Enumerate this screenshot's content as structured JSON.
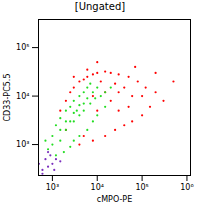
{
  "chart_data": {
    "type": "scatter",
    "title": "[Ungated]",
    "x_label": "cMPO-PE",
    "y_label": "CD33-PC5.5",
    "log": true,
    "grid": false,
    "marker": "dot",
    "xlim": [
      490,
      1200000
    ],
    "ylim": [
      230,
      380000
    ],
    "xticks": [
      {
        "value": 1000,
        "label": "10³"
      },
      {
        "value": 10000,
        "label": "10⁴"
      },
      {
        "value": 100000,
        "label": "10⁵"
      },
      {
        "value": 1000000,
        "label": "10⁶"
      }
    ],
    "yticks": [
      {
        "value": 1000,
        "label": "10³"
      },
      {
        "value": 10000,
        "label": "10⁴"
      },
      {
        "value": 100000,
        "label": "10⁵"
      }
    ],
    "series": [
      {
        "color": "#ff0000",
        "x": [
          1500,
          2000,
          2500,
          3000,
          4000,
          5000,
          6000,
          8000,
          10000,
          15000,
          20000,
          30000,
          50000,
          80000,
          120000,
          200000,
          300000,
          150000,
          100000,
          60000,
          40000,
          25000,
          15000,
          8000,
          5000,
          10000,
          20000,
          30000,
          40000,
          60000,
          15000,
          12000,
          25000,
          8000,
          50000,
          70000,
          4000,
          30000,
          100000,
          6000,
          3000,
          10000,
          200000,
          500000,
          2000
        ],
        "values": [
          5000,
          8000,
          12000,
          15000,
          20000,
          22000,
          25000,
          28000,
          30000,
          32000,
          30000,
          28000,
          25000,
          20000,
          15000,
          12000,
          8000,
          6000,
          4000,
          3000,
          2500,
          2000,
          1500,
          1200,
          1500,
          5000,
          8000,
          12000,
          15000,
          10000,
          12000,
          20000,
          18000,
          10000,
          6000,
          40000,
          1000,
          5000,
          10000,
          35000,
          25000,
          50000,
          30000,
          20000,
          2000
        ]
      },
      {
        "color": "#22dd22",
        "x": [
          800,
          1000,
          1200,
          1500,
          2000,
          2500,
          3000,
          4000,
          5000,
          6000,
          7000,
          1500,
          2000,
          3000,
          4000,
          5000,
          7000,
          9000,
          12000,
          15000,
          10000,
          8000,
          6000,
          4000,
          3000,
          2500,
          1800,
          1200,
          2500,
          3500,
          5000,
          6000,
          8000,
          10000,
          2000,
          3000,
          4000,
          1000,
          20000,
          15000,
          1500,
          700
        ],
        "values": [
          800,
          1500,
          2500,
          3500,
          5000,
          6000,
          8000,
          10000,
          12000,
          15000,
          18000,
          1200,
          2000,
          3000,
          4000,
          5000,
          7000,
          9000,
          10000,
          12000,
          4000,
          3000,
          2000,
          1500,
          1200,
          900,
          700,
          600,
          3000,
          5000,
          7000,
          9000,
          12000,
          15000,
          3000,
          4500,
          6500,
          1000,
          15000,
          6000,
          2000,
          1200
        ]
      },
      {
        "color": "#7b2fbe",
        "x": [
          600,
          800,
          1000,
          700,
          900,
          1200,
          500,
          1100,
          800,
          1500,
          600
        ],
        "values": [
          300,
          350,
          400,
          500,
          600,
          500,
          400,
          300,
          700,
          450,
          250
        ]
      }
    ]
  }
}
